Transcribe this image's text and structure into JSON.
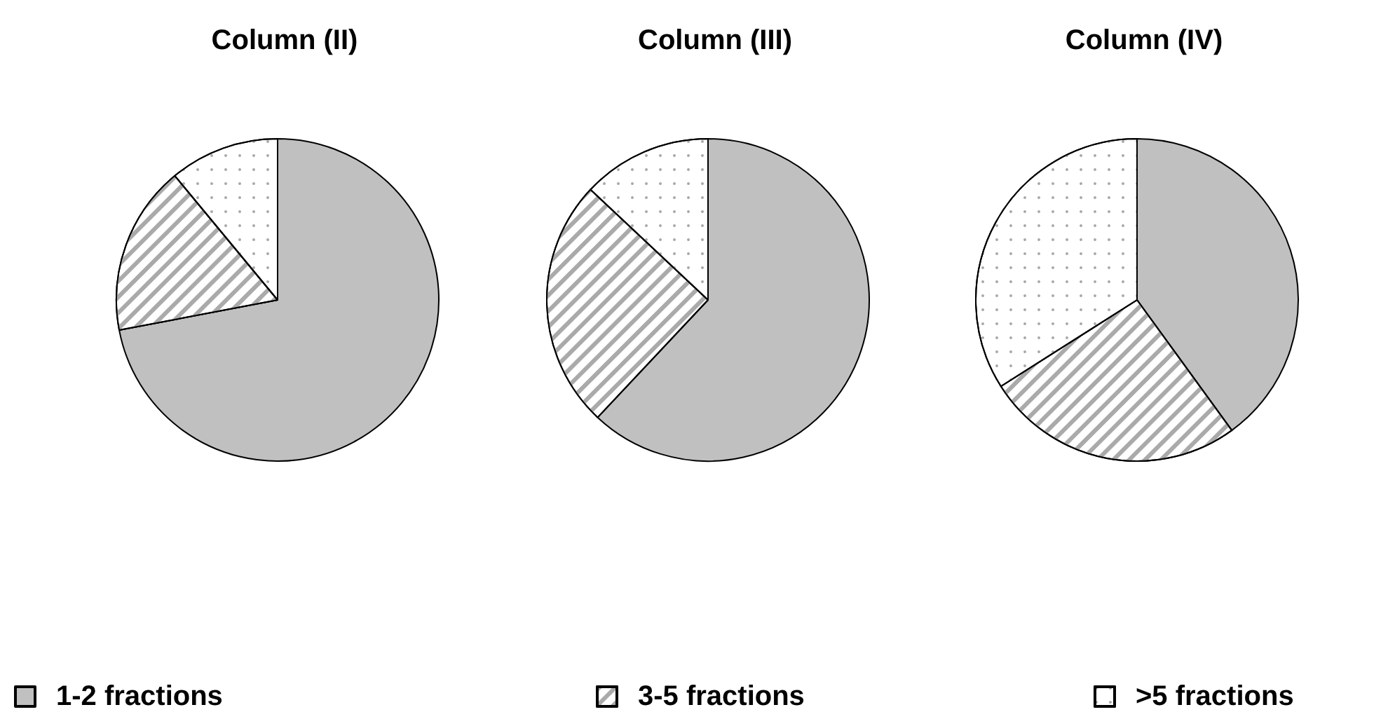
{
  "chart_data": {
    "type": "pie",
    "categories": [
      "1-2 fractions",
      "3-5 fractions",
      ">5 fractions"
    ],
    "colors": [
      "#c0c0c0",
      "#ffffff",
      "#ffffff"
    ],
    "legend": "bottom",
    "series": [
      {
        "name": "Column (II)",
        "values": [
          72,
          17,
          11
        ]
      },
      {
        "name": "Column (III)",
        "values": [
          62,
          25,
          13
        ]
      },
      {
        "name": "Column (IV)",
        "values": [
          40,
          26,
          34
        ]
      }
    ]
  }
}
